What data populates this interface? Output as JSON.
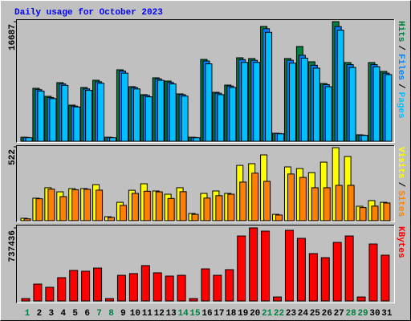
{
  "title": "Daily usage for October 2023",
  "label_separator": "/",
  "chart_data": [
    {
      "type": "bar",
      "ylim": [
        0,
        16687
      ],
      "yticks": [
        16687
      ],
      "series": [
        {
          "name": "Hits",
          "color": "#008040",
          "values": [
            560,
            7390,
            6270,
            8180,
            5040,
            7500,
            8510,
            560,
            9970,
            7620,
            6500,
            8850,
            8400,
            6610,
            560,
            11420,
            6830,
            7840,
            11650,
            11540,
            16020,
            1120,
            11540,
            13220,
            11090,
            8060,
            16687,
            10980,
            900,
            10980,
            9740
          ]
        },
        {
          "name": "Files",
          "color": "#0080ff",
          "values": [
            520,
            7200,
            6100,
            8000,
            4900,
            7300,
            8300,
            520,
            9800,
            7500,
            6400,
            8700,
            8200,
            6500,
            520,
            11200,
            6700,
            7700,
            11400,
            11300,
            15700,
            1080,
            11300,
            12000,
            10600,
            7900,
            16000,
            10700,
            860,
            10700,
            9500
          ]
        },
        {
          "name": "Pages",
          "color": "#00c0ff",
          "values": [
            480,
            7000,
            5950,
            7800,
            4780,
            7100,
            8100,
            480,
            9500,
            7300,
            6200,
            8500,
            8000,
            6300,
            480,
            10800,
            6500,
            7500,
            11000,
            11000,
            15200,
            1040,
            10900,
            11600,
            10200,
            7600,
            15500,
            10300,
            820,
            10400,
            9300
          ]
        }
      ]
    },
    {
      "type": "bar",
      "ylim": [
        0,
        522
      ],
      "yticks": [
        522
      ],
      "series": [
        {
          "name": "Visits",
          "color": "#ffff00",
          "values": [
            17,
            159,
            233,
            204,
            227,
            227,
            255,
            28,
            130,
            215,
            261,
            210,
            187,
            233,
            51,
            193,
            210,
            193,
            391,
            403,
            465,
            45,
            380,
            369,
            340,
            414,
            516,
            454,
            102,
            142,
            130
          ]
        },
        {
          "name": "Sites",
          "color": "#ff8000",
          "values": [
            13,
            155,
            223,
            170,
            219,
            222,
            216,
            23,
            108,
            193,
            208,
            204,
            157,
            205,
            45,
            160,
            177,
            187,
            273,
            336,
            278,
            40,
            330,
            306,
            233,
            233,
            250,
            250,
            93,
            103,
            125
          ]
        }
      ]
    },
    {
      "type": "bar",
      "ylim": [
        0,
        737436
      ],
      "yticks": [
        737436
      ],
      "categories": [
        "1",
        "2",
        "3",
        "4",
        "5",
        "6",
        "7",
        "8",
        "9",
        "10",
        "11",
        "12",
        "13",
        "14",
        "15",
        "16",
        "17",
        "18",
        "19",
        "20",
        "21",
        "22",
        "23",
        "24",
        "25",
        "26",
        "27",
        "28",
        "29",
        "30",
        "31"
      ],
      "highlight_categories": [
        "1",
        "7",
        "8",
        "14",
        "15",
        "21",
        "22",
        "28",
        "29"
      ],
      "highlight_color": "#008040",
      "series": [
        {
          "name": "KBytes",
          "color": "#ff0000",
          "values": [
            24000,
            170000,
            138000,
            235000,
            308000,
            300000,
            332000,
            24000,
            259000,
            276000,
            357000,
            284000,
            251000,
            259000,
            24000,
            324000,
            259000,
            316000,
            656000,
            737436,
            705000,
            40000,
            713000,
            632000,
            478000,
            437000,
            591000,
            656000,
            40000,
            575000,
            462000
          ]
        }
      ]
    }
  ]
}
